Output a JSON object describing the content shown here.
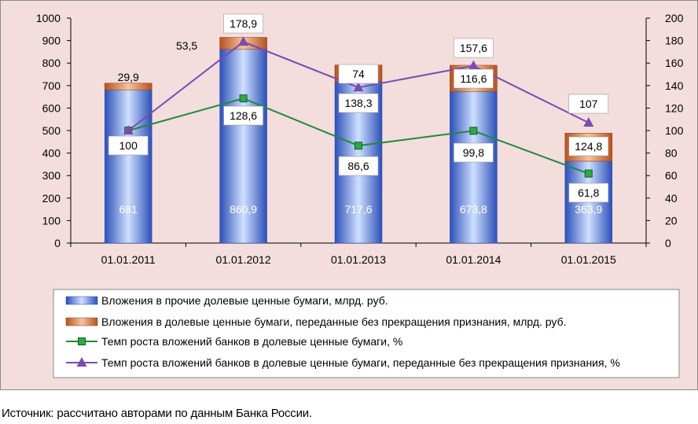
{
  "chart_data": {
    "type": "bar",
    "categories": [
      "01.01.2011",
      "01.01.2012",
      "01.01.2013",
      "01.01.2014",
      "01.01.2015"
    ],
    "stacked": true,
    "left_axis": {
      "ylim": [
        0,
        1000
      ],
      "ticks": [
        0,
        100,
        200,
        300,
        400,
        500,
        600,
        700,
        800,
        900,
        1000
      ]
    },
    "right_axis": {
      "ylim": [
        0,
        200
      ],
      "ticks": [
        0,
        20,
        40,
        60,
        80,
        100,
        120,
        140,
        160,
        180,
        200
      ]
    },
    "bar_series": [
      {
        "name": "Вложения в прочие долевые ценные бумаги, млрд. руб.",
        "values": [
          681,
          860.9,
          717.6,
          673.8,
          363.9
        ],
        "labels": [
          "681",
          "860,9",
          "717,6",
          "673,8",
          "363,9"
        ],
        "color": "#4a6fcf"
      },
      {
        "name": "Вложения в долевые ценные бумаги, переданные без прекращения признания, млрд. руб.",
        "values": [
          29.9,
          53.5,
          74,
          116.6,
          124.8
        ],
        "labels": [
          "29,9",
          "53,5",
          "74",
          "116,6",
          "124,8"
        ],
        "color": "#c8622a"
      }
    ],
    "line_series": [
      {
        "name": "Темп роста вложений банков в долевые ценные бумаги, %",
        "values": [
          100,
          128.6,
          86.6,
          99.8,
          61.8
        ],
        "labels": [
          "100",
          "128,6",
          "86,6",
          "99,8",
          "61,8"
        ],
        "color": "#1e8a3c",
        "marker": "square",
        "marker_color": "#2fa84a"
      },
      {
        "name": "Темп роста вложений банков в долевые ценные бумаги, переданные без прекращения признания, %",
        "values": [
          100,
          178.9,
          138.3,
          157.6,
          107
        ],
        "labels": [
          "",
          "178,9",
          "138,3",
          "157,6",
          "107"
        ],
        "color": "#7b4bb0",
        "marker": "triangle",
        "marker_color": "#7b4bb0"
      }
    ],
    "legend_position": "bottom",
    "grid": false
  },
  "colors": {
    "background": "#f3dddd",
    "frame": "#8a8a8a",
    "bar_blue_dark": "#2c4fb8",
    "bar_blue_light": "#cfe0ff",
    "bar_orange_dark": "#b5521f",
    "bar_orange_light": "#f6c49c"
  },
  "source_note": "Источник: рассчитано авторами по данным Банка России."
}
